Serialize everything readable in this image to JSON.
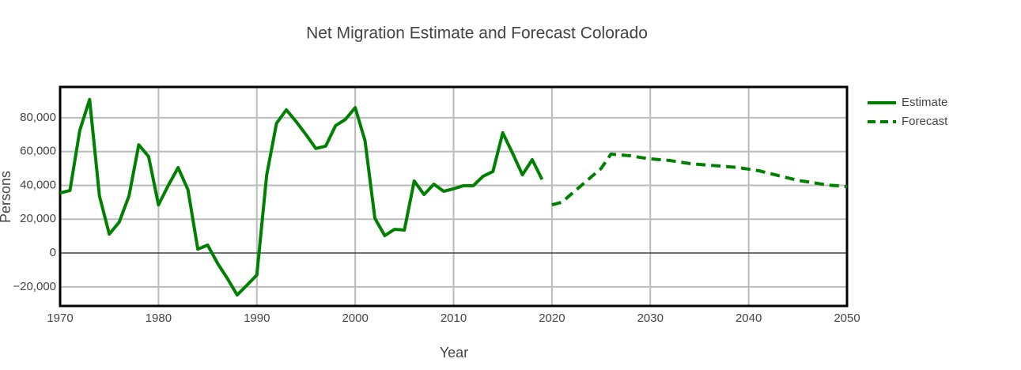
{
  "chart_data": {
    "type": "line",
    "title": "Net Migration Estimate and Forecast Colorado",
    "x_label": "Year",
    "y_label": "Persons",
    "xlim": [
      1970,
      2050
    ],
    "xticks": [
      1970,
      1980,
      1990,
      2000,
      2010,
      2020,
      2030,
      2040,
      2050
    ],
    "ylim": [
      -31300,
      98200
    ],
    "yticks": [
      {
        "value": -20000,
        "label": "−20,000"
      },
      0,
      {
        "value": 20000,
        "label": "20,000"
      },
      {
        "value": 40000,
        "label": "40,000"
      },
      {
        "value": 60000,
        "label": "60,000"
      },
      {
        "value": 80000,
        "label": "80,000"
      }
    ],
    "grid": true,
    "legend": "right",
    "series": [
      {
        "name": "Estimate",
        "color": "#008000",
        "dash": "solid",
        "x": [
          1970,
          1971,
          1972,
          1973,
          1974,
          1975,
          1976,
          1977,
          1978,
          1979,
          1980,
          1981,
          1982,
          1983,
          1984,
          1985,
          1986,
          1987,
          1988,
          1989,
          1990,
          1991,
          1992,
          1993,
          1994,
          1995,
          1996,
          1997,
          1998,
          1999,
          2000,
          2001,
          2002,
          2003,
          2004,
          2005,
          2006,
          2007,
          2008,
          2009,
          2010,
          2011,
          2012,
          2013,
          2014,
          2015,
          2016,
          2017,
          2018,
          2019
        ],
        "values": [
          35500,
          37000,
          72500,
          90800,
          33700,
          11200,
          18200,
          33700,
          64000,
          57000,
          28500,
          40000,
          50500,
          37400,
          2300,
          4700,
          -6000,
          -15000,
          -24800,
          -19000,
          -13000,
          46000,
          76700,
          84700,
          77700,
          70000,
          61800,
          63200,
          75300,
          79000,
          86000,
          66400,
          20600,
          10300,
          14000,
          13600,
          42600,
          34600,
          40700,
          36500,
          38000,
          39800,
          39800,
          45400,
          48200,
          71100,
          59000,
          46300,
          55200,
          43500
        ]
      },
      {
        "name": "Forecast",
        "color": "#008000",
        "dash": "dashed",
        "x": [
          2020,
          2021,
          2022,
          2023,
          2024,
          2025,
          2026,
          2027,
          2028,
          2029,
          2030,
          2031,
          2032,
          2033,
          2034,
          2035,
          2036,
          2037,
          2038,
          2039,
          2040,
          2041,
          2042,
          2043,
          2044,
          2045,
          2046,
          2047,
          2048,
          2049,
          2050
        ],
        "values": [
          28500,
          30000,
          35000,
          40000,
          45000,
          50000,
          58500,
          58000,
          57500,
          56500,
          55700,
          55200,
          54700,
          53800,
          52900,
          52400,
          51900,
          51500,
          51000,
          50500,
          49600,
          48700,
          47300,
          45800,
          44400,
          43000,
          42100,
          41200,
          40200,
          39800,
          39300
        ]
      }
    ]
  }
}
